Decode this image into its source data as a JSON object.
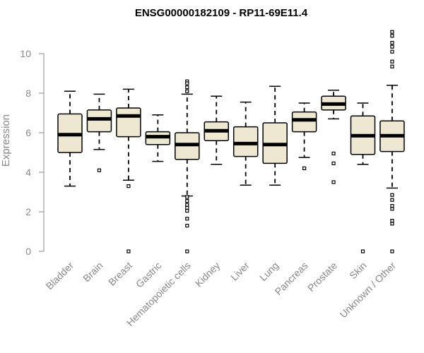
{
  "chart_data": {
    "type": "boxplot",
    "title": "ENSG00000182109 - RP11-69E11.4",
    "ylabel": "Expression",
    "xlabel": "",
    "ylim": [
      0,
      11.2
    ],
    "yticks": [
      0,
      2,
      4,
      6,
      8,
      10
    ],
    "grid": false,
    "box_fill": "#EEE8D2",
    "median_color": "#000000",
    "categories": [
      "Bladder",
      "Brain",
      "Breast",
      "Gastric",
      "Hematopoietic cells",
      "Kidney",
      "Liver",
      "Lung",
      "Pancreas",
      "Prostate",
      "Skin",
      "Unknown / Other"
    ],
    "boxes": [
      {
        "category": "Bladder",
        "whisker_low": 3.3,
        "q1": 5.0,
        "median": 5.9,
        "q3": 6.95,
        "whisker_high": 8.1,
        "outliers": []
      },
      {
        "category": "Brain",
        "whisker_low": 5.15,
        "q1": 6.05,
        "median": 6.7,
        "q3": 7.15,
        "whisker_high": 7.95,
        "outliers": [
          4.1
        ]
      },
      {
        "category": "Breast",
        "whisker_low": 3.6,
        "q1": 5.8,
        "median": 6.85,
        "q3": 7.25,
        "whisker_high": 8.2,
        "outliers": [
          3.3,
          0.0
        ]
      },
      {
        "category": "Gastric",
        "whisker_low": 4.55,
        "q1": 5.4,
        "median": 5.8,
        "q3": 6.05,
        "whisker_high": 6.9,
        "outliers": []
      },
      {
        "category": "Hematopoietic cells",
        "whisker_low": 2.8,
        "q1": 4.65,
        "median": 5.4,
        "q3": 6.0,
        "whisker_high": 7.95,
        "outliers": [
          8.6,
          8.5,
          8.3,
          8.1,
          2.75,
          2.55,
          2.35,
          2.2,
          2.05,
          1.65,
          1.3,
          0.0
        ]
      },
      {
        "category": "Kidney",
        "whisker_low": 4.4,
        "q1": 5.6,
        "median": 6.1,
        "q3": 6.55,
        "whisker_high": 7.85,
        "outliers": []
      },
      {
        "category": "Liver",
        "whisker_low": 3.35,
        "q1": 4.8,
        "median": 5.45,
        "q3": 6.3,
        "whisker_high": 7.55,
        "outliers": []
      },
      {
        "category": "Lung",
        "whisker_low": 3.35,
        "q1": 4.45,
        "median": 5.4,
        "q3": 6.5,
        "whisker_high": 8.35,
        "outliers": []
      },
      {
        "category": "Pancreas",
        "whisker_low": 4.75,
        "q1": 6.05,
        "median": 6.65,
        "q3": 7.05,
        "whisker_high": 7.5,
        "outliers": [
          4.2
        ]
      },
      {
        "category": "Prostate",
        "whisker_low": 6.7,
        "q1": 7.15,
        "median": 7.45,
        "q3": 7.85,
        "whisker_high": 8.15,
        "outliers": [
          4.95,
          4.45,
          3.5
        ]
      },
      {
        "category": "Skin",
        "whisker_low": 4.4,
        "q1": 4.9,
        "median": 5.85,
        "q3": 6.85,
        "whisker_high": 7.5,
        "outliers": [
          0.0
        ]
      },
      {
        "category": "Unknown / Other",
        "whisker_low": 3.2,
        "q1": 5.05,
        "median": 5.85,
        "q3": 6.6,
        "whisker_high": 8.4,
        "outliers": [
          11.1,
          10.9,
          10.55,
          10.35,
          10.1,
          9.6,
          9.35,
          2.85,
          2.6,
          2.3,
          2.15,
          1.55,
          1.4,
          0.0
        ]
      }
    ]
  }
}
